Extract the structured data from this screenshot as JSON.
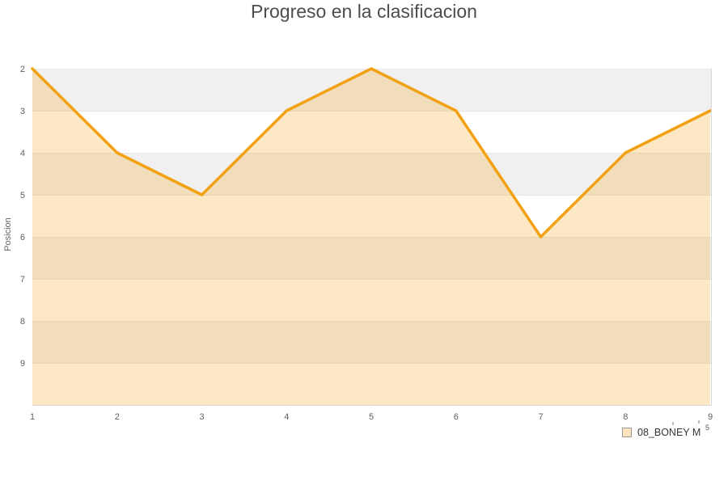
{
  "chart": {
    "title": "Progreso en la clasificacion",
    "y_axis_title": "Posicion"
  },
  "legend": {
    "label": "08_BONEY M",
    "fragment": "5"
  },
  "chart_data": {
    "type": "area",
    "title": "Progreso en la clasificacion",
    "xlabel": "",
    "ylabel": "Posicion",
    "x": [
      1,
      2,
      3,
      4,
      5,
      6,
      7,
      8,
      9
    ],
    "x_tick_labels": [
      "1",
      "2",
      "3",
      "4",
      "5",
      "6",
      "7",
      "8",
      "9"
    ],
    "y_ticks": [
      2,
      3,
      4,
      5,
      6,
      7,
      8,
      9
    ],
    "series": [
      {
        "name": "08_BONEY M",
        "values": [
          2,
          4,
          5,
          3,
          2,
          3,
          6,
          4,
          3
        ]
      }
    ],
    "y_axis_reversed": true,
    "ylim": [
      1.8,
      10
    ],
    "grid": true,
    "legend_position": "bottom-right",
    "colors": {
      "line": "#F2A114",
      "area_fill": "rgba(243,164,24,0.25)",
      "band_gray": "#F0F0F0",
      "band_white": "#FFFFFF",
      "gridline": "#E6E6E6",
      "border": "#D9D9D9",
      "title_text": "#4D4D4D",
      "tick_text": "#606060",
      "legend_text": "#333333",
      "legend_swatch_fill": "#FCE4BC",
      "legend_swatch_border": "#999999"
    }
  }
}
